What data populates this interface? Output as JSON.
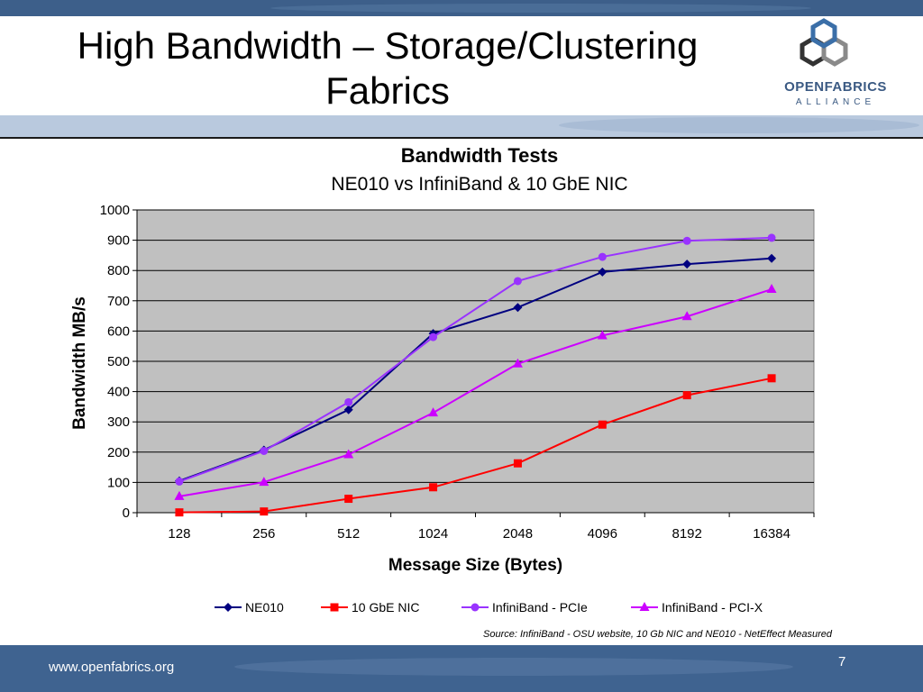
{
  "slide": {
    "title_line1": "High Bandwidth – Storage/Clustering",
    "title_line2": "Fabrics",
    "logo_name": "OPENFABRICS",
    "logo_sub": "ALLIANCE",
    "source": "Source: InfiniBand - OSU website, 10 Gb NIC and NE010 - NetEffect Measured",
    "footer_url": "www.openfabrics.org",
    "page_number": "7"
  },
  "chart_data": {
    "type": "line",
    "title": "Bandwidth Tests",
    "subtitle": "NE010 vs InfiniBand & 10 GbE NIC",
    "xlabel": "Message Size (Bytes)",
    "ylabel": "Bandwidth MB/s",
    "categories": [
      "128",
      "256",
      "512",
      "1024",
      "2048",
      "4096",
      "8192",
      "16384"
    ],
    "ylim": [
      0,
      1000
    ],
    "yticks": [
      "0",
      "100",
      "200",
      "300",
      "400",
      "500",
      "600",
      "700",
      "800",
      "900",
      "1000"
    ],
    "grid": true,
    "legend_position": "bottom",
    "series": [
      {
        "name": "NE010",
        "color": "#000080",
        "marker": "diamond",
        "values": [
          105,
          207,
          340,
          592,
          678,
          795,
          821,
          840
        ]
      },
      {
        "name": "10 GbE NIC",
        "color": "#ff0000",
        "marker": "square",
        "values": [
          1,
          4,
          46,
          84,
          163,
          291,
          388,
          444
        ]
      },
      {
        "name": "InfiniBand - PCIe",
        "color": "#9933ff",
        "marker": "circle",
        "values": [
          103,
          204,
          365,
          580,
          765,
          845,
          898,
          908
        ]
      },
      {
        "name": "InfiniBand - PCI-X",
        "color": "#cc00ff",
        "marker": "triangle",
        "values": [
          54,
          101,
          192,
          330,
          492,
          585,
          648,
          738
        ]
      }
    ]
  }
}
